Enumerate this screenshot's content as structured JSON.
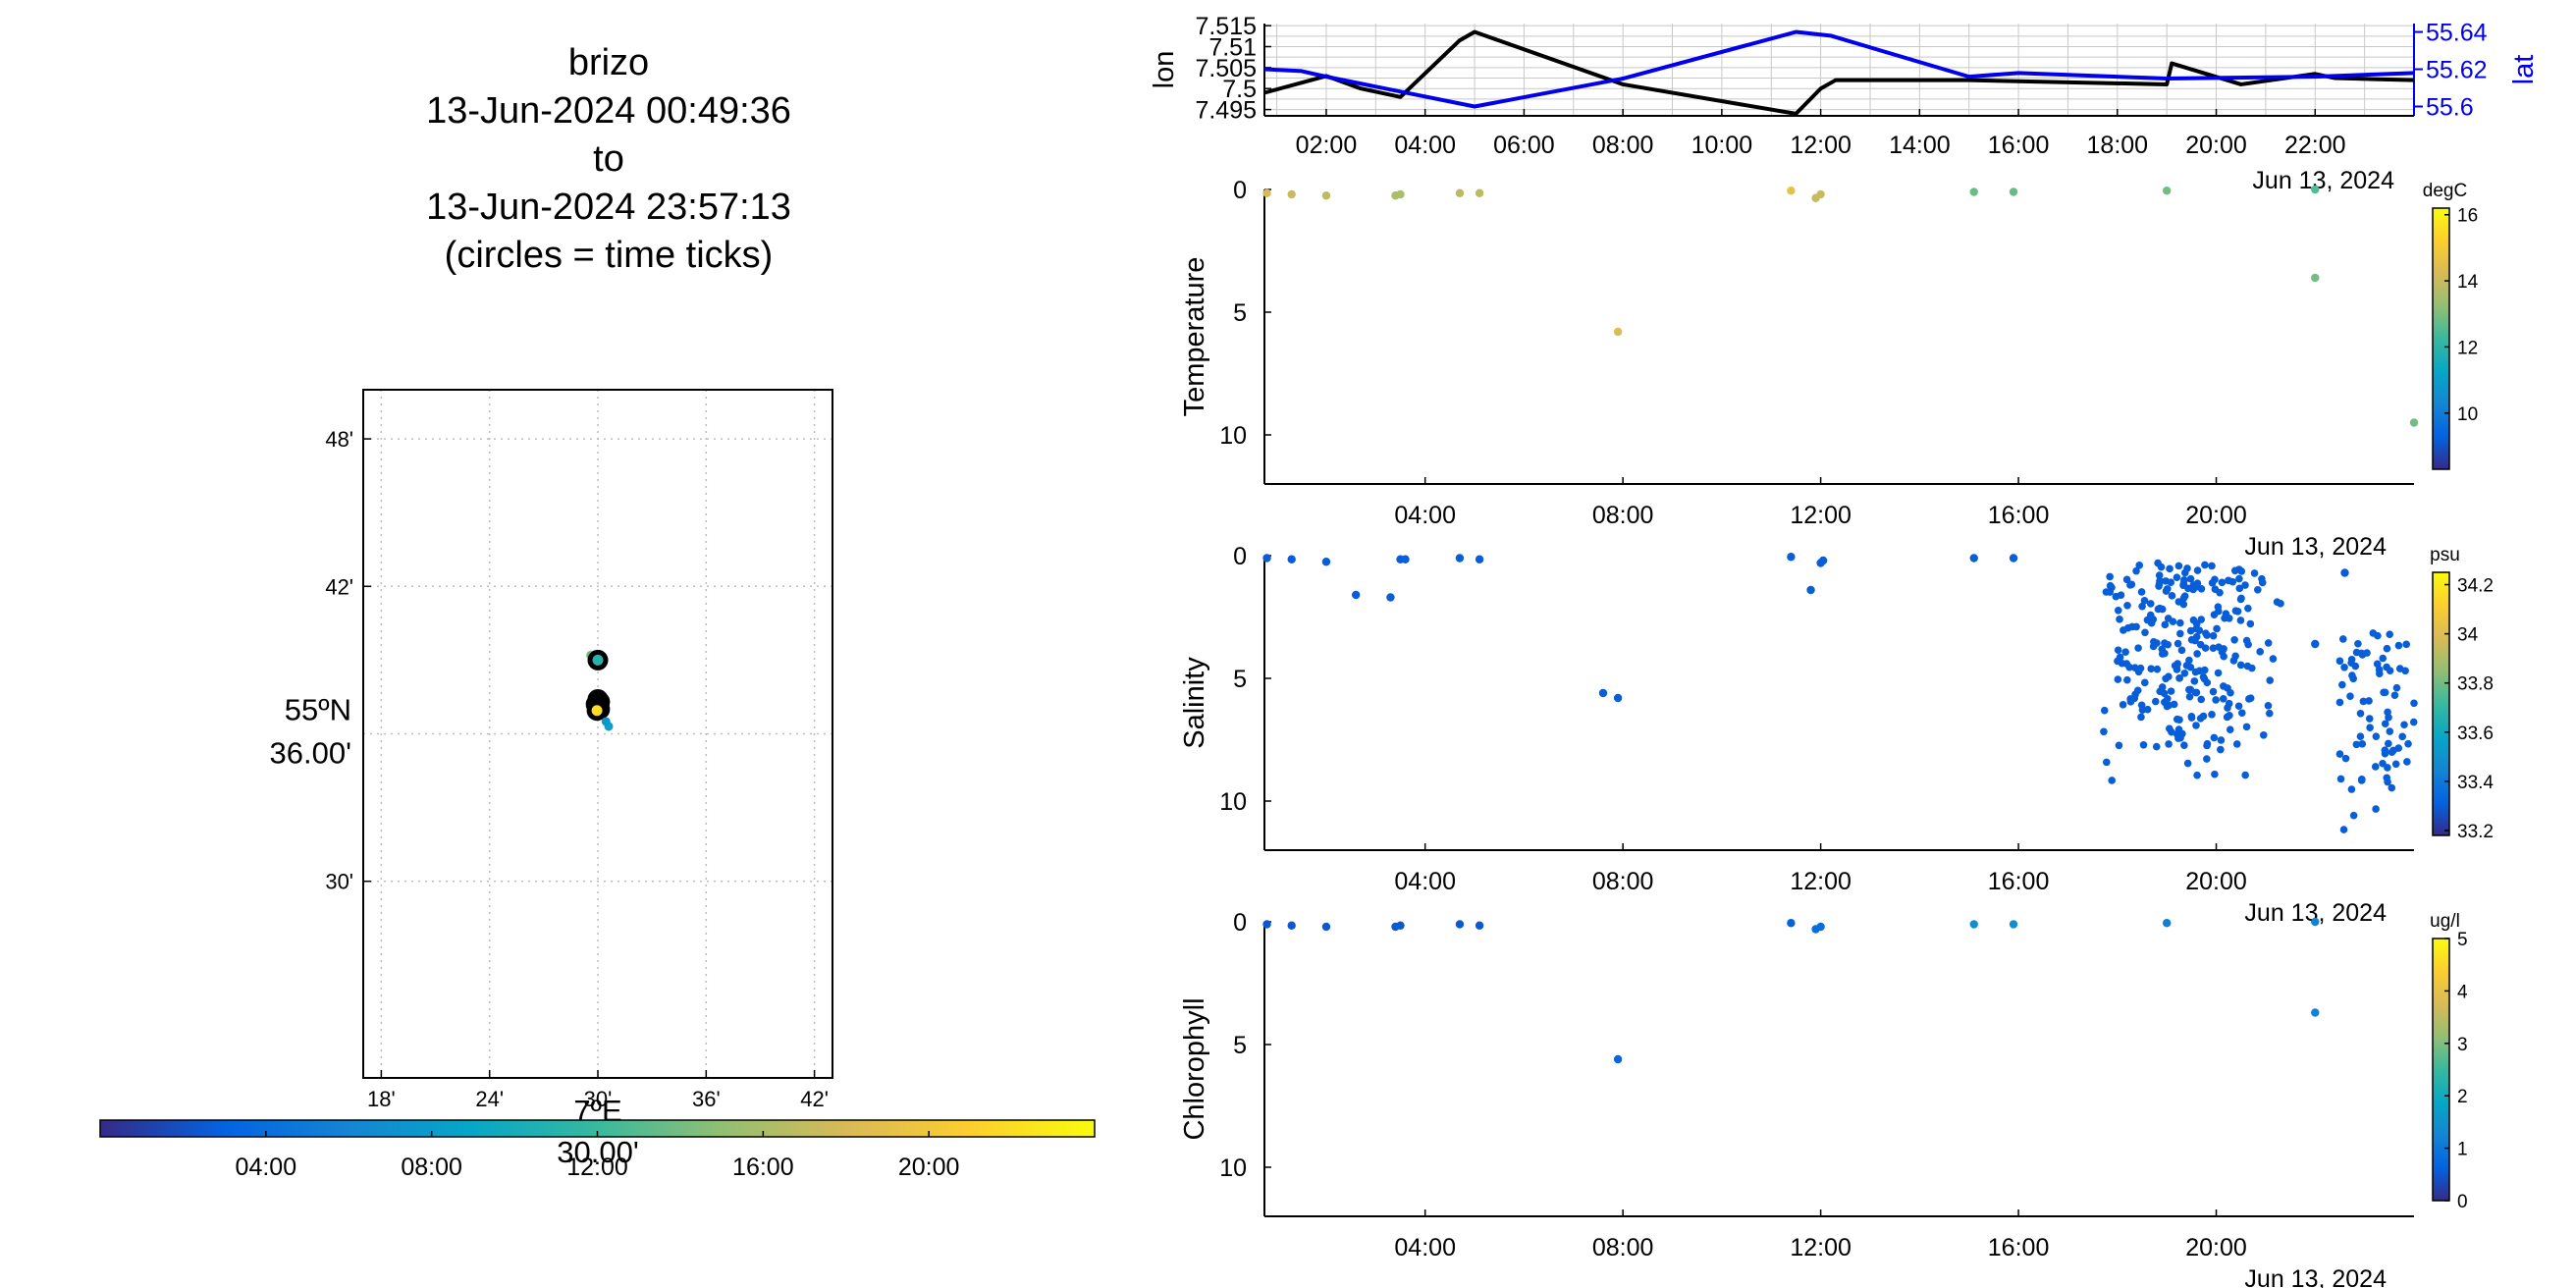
{
  "title": {
    "platform": "brizo",
    "start": "13-Jun-2024 00:49:36",
    "to": "to",
    "end": "13-Jun-2024 23:57:13",
    "note": "(circles = time ticks)"
  },
  "colors": {
    "lon_line": "#000000",
    "lat_line": "#0000ee",
    "grid": "#c8c8c8",
    "parula": [
      "#352a87",
      "#0363e1",
      "#1485d4",
      "#06a7c6",
      "#38b99e",
      "#92bf73",
      "#d9ba56",
      "#fcce2e",
      "#f9fb0e"
    ]
  },
  "chart_data": [
    {
      "id": "track_map",
      "type": "scatter",
      "xlabel_deg": "7ºE",
      "xlabel_min": "30.00'",
      "ylabel_deg": "55ºN",
      "ylabel_min": "36.00'",
      "xlim_min": [
        17,
        43
      ],
      "ylim_min": [
        22,
        50
      ],
      "x_tick_labels": [
        "18'",
        "24'",
        "30'",
        "36'",
        "42'"
      ],
      "x_ticks": [
        18,
        24,
        30,
        36,
        42
      ],
      "y_tick_labels": [
        "30'",
        "42'",
        "48'"
      ],
      "y_ticks": [
        30,
        42,
        48
      ],
      "grid": true,
      "points": [
        {
          "x": 29.6,
          "y": 39.2,
          "t": 14.0
        },
        {
          "x": 29.9,
          "y": 39.1,
          "t": 13.0
        },
        {
          "x": 30.0,
          "y": 39.0,
          "t": 11.0,
          "ring": true
        },
        {
          "x": 30.0,
          "y": 37.4,
          "t": 2.0,
          "ring": true
        },
        {
          "x": 30.1,
          "y": 37.3,
          "t": 4.0,
          "ring": true
        },
        {
          "x": 29.9,
          "y": 37.2,
          "t": 6.0,
          "ring": true
        },
        {
          "x": 30.0,
          "y": 37.1,
          "t": 8.0,
          "ring": true
        },
        {
          "x": 30.1,
          "y": 37.0,
          "t": 20.0,
          "ring": true
        },
        {
          "x": 29.95,
          "y": 36.95,
          "t": 22.0,
          "ring": true
        },
        {
          "x": 30.6,
          "y": 36.3,
          "t": 8.5
        },
        {
          "x": 30.45,
          "y": 36.5,
          "t": 7.5
        }
      ]
    },
    {
      "id": "time_colorbar",
      "type": "heatmap",
      "range": [
        0,
        24
      ],
      "tick_values": [
        4,
        8,
        12,
        16,
        20
      ],
      "tick_labels": [
        "04:00",
        "08:00",
        "12:00",
        "16:00",
        "20:00"
      ]
    },
    {
      "id": "lon_lat",
      "type": "line",
      "ylabel_left": "lon",
      "ylabel_right": "lat",
      "xlim": [
        0.75,
        24
      ],
      "ylim_left": [
        7.4935,
        7.5155
      ],
      "ylim_right": [
        55.595,
        55.6445
      ],
      "left_ticks": [
        7.495,
        7.5,
        7.505,
        7.51,
        7.515
      ],
      "left_tick_labels": [
        "7.495",
        "7.5",
        "7.505",
        "7.51",
        "7.515"
      ],
      "right_ticks": [
        55.6,
        55.62,
        55.64
      ],
      "right_tick_labels": [
        "55.6",
        "55.62",
        "55.64"
      ],
      "x_ticks": [
        2,
        4,
        6,
        8,
        10,
        12,
        14,
        16,
        18,
        20,
        22
      ],
      "x_tick_labels": [
        "02:00",
        "04:00",
        "06:00",
        "08:00",
        "10:00",
        "12:00",
        "14:00",
        "16:00",
        "18:00",
        "20:00",
        "22:00"
      ],
      "date_label": "Jun 13, 2024",
      "grid": true,
      "series": [
        {
          "name": "lon",
          "axis": "left",
          "x": [
            0.75,
            2.0,
            2.7,
            3.5,
            4.7,
            5.0,
            8.0,
            11.5,
            12.0,
            12.3,
            15.0,
            19.0,
            19.1,
            20.5,
            22.0,
            22.4,
            24.0
          ],
          "y": [
            7.499,
            7.503,
            7.5,
            7.498,
            7.5115,
            7.5135,
            7.501,
            7.494,
            7.5,
            7.502,
            7.502,
            7.501,
            7.506,
            7.501,
            7.5035,
            7.5025,
            7.502
          ]
        },
        {
          "name": "lat",
          "axis": "right",
          "x": [
            0.75,
            1.5,
            2.0,
            5.0,
            8.0,
            11.5,
            12.2,
            15.0,
            16.0,
            19.0,
            22.0,
            24.0
          ],
          "y": [
            55.62,
            55.619,
            55.616,
            55.6,
            55.615,
            55.64,
            55.638,
            55.616,
            55.618,
            55.615,
            55.616,
            55.618
          ]
        }
      ]
    },
    {
      "id": "temperature",
      "type": "scatter",
      "ylabel": "Temperature",
      "colorbar_unit": "degC",
      "crange": [
        8.3,
        16.2
      ],
      "c_ticks": [
        10,
        12,
        14,
        16
      ],
      "c_tick_labels": [
        "10",
        "12",
        "14",
        "16"
      ],
      "xlim": [
        0.75,
        24
      ],
      "ylim": [
        12,
        0
      ],
      "y_ticks": [
        0,
        5,
        10
      ],
      "y_tick_labels": [
        "0",
        "5",
        "10"
      ],
      "x_ticks": [
        4,
        8,
        12,
        16,
        20
      ],
      "x_tick_labels": [
        "04:00",
        "08:00",
        "12:00",
        "16:00",
        "20:00"
      ],
      "date_label": "Jun 13, 2024",
      "points": [
        {
          "t": 0.8,
          "d": 0.15,
          "v": 14.2
        },
        {
          "t": 1.3,
          "d": 0.2,
          "v": 14.0
        },
        {
          "t": 2.0,
          "d": 0.25,
          "v": 13.8
        },
        {
          "t": 3.4,
          "d": 0.25,
          "v": 13.6
        },
        {
          "t": 3.5,
          "d": 0.2,
          "v": 13.6
        },
        {
          "t": 4.7,
          "d": 0.15,
          "v": 13.8
        },
        {
          "t": 5.1,
          "d": 0.15,
          "v": 13.8
        },
        {
          "t": 7.9,
          "d": 5.8,
          "v": 14.3
        },
        {
          "t": 11.4,
          "d": 0.05,
          "v": 14.6
        },
        {
          "t": 11.9,
          "d": 0.35,
          "v": 14.0
        },
        {
          "t": 12.0,
          "d": 0.2,
          "v": 14.0
        },
        {
          "t": 15.1,
          "d": 0.1,
          "v": 12.8
        },
        {
          "t": 15.9,
          "d": 0.1,
          "v": 12.8
        },
        {
          "t": 19.0,
          "d": 0.05,
          "v": 12.9
        },
        {
          "t": 22.0,
          "d": 0.0,
          "v": 12.5
        },
        {
          "t": 22.0,
          "d": 3.6,
          "v": 12.9
        },
        {
          "t": 24.0,
          "d": 9.5,
          "v": 12.9
        }
      ]
    },
    {
      "id": "salinity",
      "type": "scatter",
      "ylabel": "Salinity",
      "colorbar_unit": "psu",
      "crange": [
        33.18,
        34.25
      ],
      "c_ticks": [
        33.2,
        33.4,
        33.6,
        33.8,
        34,
        34.2
      ],
      "c_tick_labels": [
        "33.2",
        "33.4",
        "33.6",
        "33.8",
        "34",
        "34.2"
      ],
      "xlim": [
        0.75,
        24
      ],
      "ylim": [
        12,
        0
      ],
      "y_ticks": [
        0,
        5,
        10
      ],
      "y_tick_labels": [
        "0",
        "5",
        "10"
      ],
      "x_ticks": [
        4,
        8,
        12,
        16,
        20
      ],
      "x_tick_labels": [
        "04:00",
        "08:00",
        "12:00",
        "16:00",
        "20:00"
      ],
      "date_label": "Jun 13, 2024",
      "value": 33.3,
      "points": [
        {
          "t": 0.8,
          "d": 0.1
        },
        {
          "t": 1.3,
          "d": 0.15
        },
        {
          "t": 2.0,
          "d": 0.25
        },
        {
          "t": 2.6,
          "d": 1.6
        },
        {
          "t": 3.3,
          "d": 1.7
        },
        {
          "t": 3.5,
          "d": 0.15
        },
        {
          "t": 3.6,
          "d": 0.15
        },
        {
          "t": 4.7,
          "d": 0.1
        },
        {
          "t": 5.1,
          "d": 0.15
        },
        {
          "t": 7.6,
          "d": 5.6
        },
        {
          "t": 7.9,
          "d": 5.8
        },
        {
          "t": 11.4,
          "d": 0.05
        },
        {
          "t": 11.8,
          "d": 1.4
        },
        {
          "t": 12.0,
          "d": 0.3
        },
        {
          "t": 12.05,
          "d": 0.2
        },
        {
          "t": 15.1,
          "d": 0.1
        },
        {
          "t": 15.9,
          "d": 0.1
        },
        {
          "t": 22.6,
          "d": 0.7
        },
        {
          "t": 22.0,
          "d": 3.6
        }
      ],
      "cluster_a": {
        "count": 260,
        "t_range": [
          17.6,
          21.3
        ],
        "d_range": [
          0.3,
          9.8
        ],
        "seed": 7
      },
      "cluster_b": {
        "count": 75,
        "t_range": [
          22.5,
          24.0
        ],
        "d_range": [
          3.0,
          11.5
        ],
        "seed": 19
      }
    },
    {
      "id": "chlorophyll",
      "type": "scatter",
      "ylabel": "Chlorophyll",
      "colorbar_unit": "ug/l",
      "crange": [
        0,
        5
      ],
      "c_ticks": [
        0,
        1,
        2,
        3,
        4,
        5
      ],
      "c_tick_labels": [
        "0",
        "1",
        "2",
        "3",
        "4",
        "5"
      ],
      "xlim": [
        0.75,
        24
      ],
      "ylim": [
        12,
        0
      ],
      "y_ticks": [
        0,
        5,
        10
      ],
      "y_tick_labels": [
        "0",
        "5",
        "10"
      ],
      "x_ticks": [
        4,
        8,
        12,
        16,
        20
      ],
      "x_tick_labels": [
        "04:00",
        "08:00",
        "12:00",
        "16:00",
        "20:00"
      ],
      "date_label": "Jun 13, 2024",
      "points": [
        {
          "t": 0.8,
          "d": 0.1,
          "v": 0.5
        },
        {
          "t": 1.3,
          "d": 0.15,
          "v": 0.5
        },
        {
          "t": 2.0,
          "d": 0.2,
          "v": 0.5
        },
        {
          "t": 3.4,
          "d": 0.2,
          "v": 0.5
        },
        {
          "t": 3.5,
          "d": 0.15,
          "v": 0.5
        },
        {
          "t": 4.7,
          "d": 0.1,
          "v": 0.5
        },
        {
          "t": 5.1,
          "d": 0.15,
          "v": 0.5
        },
        {
          "t": 7.9,
          "d": 5.6,
          "v": 0.7
        },
        {
          "t": 11.4,
          "d": 0.05,
          "v": 0.6
        },
        {
          "t": 11.9,
          "d": 0.3,
          "v": 0.8
        },
        {
          "t": 12.0,
          "d": 0.2,
          "v": 0.8
        },
        {
          "t": 15.1,
          "d": 0.1,
          "v": 1.4
        },
        {
          "t": 15.9,
          "d": 0.1,
          "v": 1.4
        },
        {
          "t": 19.0,
          "d": 0.05,
          "v": 1.1
        },
        {
          "t": 22.0,
          "d": 0.0,
          "v": 1.2
        },
        {
          "t": 22.0,
          "d": 3.7,
          "v": 1.2
        }
      ]
    }
  ]
}
